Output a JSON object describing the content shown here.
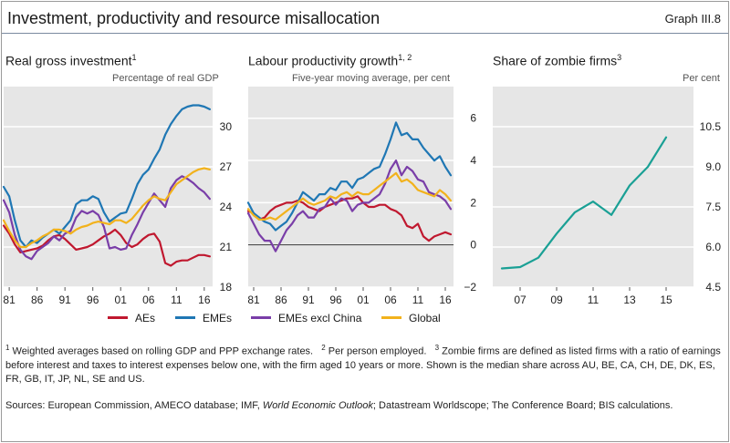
{
  "header": {
    "title": "Investment, productivity and resource misallocation",
    "graph_id": "Graph III.8"
  },
  "legend": [
    {
      "label": "AEs",
      "color": "#c0182f"
    },
    {
      "label": "EMEs",
      "color": "#1f77b4"
    },
    {
      "label": "EMEs excl China",
      "color": "#7a3ea8"
    },
    {
      "label": "Global",
      "color": "#f2b21c"
    }
  ],
  "footnotes": {
    "n1": "1",
    "t1": " Weighted averages based on rolling GDP and PPP exchange rates.",
    "n2": "2",
    "t2": " Per person employed.",
    "n3": "3",
    "t3": " Zombie firms are defined as listed firms with a ratio of earnings before interest and taxes to interest expenses below one, with the firm aged 10 years or more. Shown is the median share across AU, BE, CA, CH, DE, DK, ES, FR, GB, IT, JP, NL, SE and US."
  },
  "sources": {
    "prefix": "Sources: European Commission, AMECO database; IMF, ",
    "italic": "World Economic Outlook",
    "suffix": "; Datastream Worldscope; The Conference Board; BIS calculations."
  },
  "chart_data": [
    {
      "type": "line",
      "title": "Real gross investment",
      "title_note": "1",
      "unit_label": "Percentage of real GDP",
      "xlim": [
        1980,
        2017.5
      ],
      "ylim": [
        18,
        33
      ],
      "yticks": [
        18,
        21,
        24,
        27,
        30
      ],
      "xticks": [
        1981,
        1986,
        1991,
        1996,
        2001,
        2006,
        2011,
        2016
      ],
      "xtick_labels": [
        "81",
        "86",
        "91",
        "96",
        "01",
        "06",
        "11",
        "16"
      ],
      "grid": true,
      "series": [
        {
          "name": "AEs",
          "color": "#c0182f",
          "x": [
            1980,
            1981,
            1982,
            1983,
            1984,
            1985,
            1986,
            1987,
            1988,
            1989,
            1990,
            1991,
            1992,
            1993,
            1994,
            1995,
            1996,
            1997,
            1998,
            1999,
            2000,
            2001,
            2002,
            2003,
            2004,
            2005,
            2006,
            2007,
            2008,
            2009,
            2010,
            2011,
            2012,
            2013,
            2014,
            2015,
            2016,
            2017
          ],
          "y": [
            22.6,
            22.0,
            21.2,
            20.6,
            20.7,
            20.8,
            20.9,
            21.1,
            21.5,
            21.8,
            21.9,
            21.6,
            21.2,
            20.8,
            20.9,
            21.0,
            21.2,
            21.5,
            21.8,
            22.0,
            22.3,
            21.9,
            21.3,
            21.0,
            21.2,
            21.6,
            21.9,
            22.0,
            21.4,
            19.8,
            19.6,
            19.9,
            20.0,
            20.0,
            20.2,
            20.4,
            20.4,
            20.3
          ]
        },
        {
          "name": "EMEs",
          "color": "#1f77b4",
          "x": [
            1980,
            1981,
            1982,
            1983,
            1984,
            1985,
            1986,
            1987,
            1988,
            1989,
            1990,
            1991,
            1992,
            1993,
            1994,
            1995,
            1996,
            1997,
            1998,
            1999,
            2000,
            2001,
            2002,
            2003,
            2004,
            2005,
            2006,
            2007,
            2008,
            2009,
            2010,
            2011,
            2012,
            2013,
            2014,
            2015,
            2016,
            2017
          ],
          "y": [
            25.5,
            24.8,
            23.0,
            21.5,
            21.0,
            21.5,
            21.3,
            21.7,
            22.0,
            22.3,
            22.0,
            22.5,
            23.0,
            24.2,
            24.5,
            24.5,
            24.8,
            24.6,
            23.6,
            22.9,
            23.2,
            23.5,
            23.6,
            24.6,
            25.7,
            26.4,
            26.8,
            27.6,
            28.3,
            29.4,
            30.2,
            30.8,
            31.3,
            31.5,
            31.6,
            31.6,
            31.5,
            31.3
          ]
        },
        {
          "name": "EMEs excl China",
          "color": "#7a3ea8",
          "x": [
            1980,
            1981,
            1982,
            1983,
            1984,
            1985,
            1986,
            1987,
            1988,
            1989,
            1990,
            1991,
            1992,
            1993,
            1994,
            1995,
            1996,
            1997,
            1998,
            1999,
            2000,
            2001,
            2002,
            2003,
            2004,
            2005,
            2006,
            2007,
            2008,
            2009,
            2010,
            2011,
            2012,
            2013,
            2014,
            2015,
            2016,
            2017
          ],
          "y": [
            24.5,
            23.6,
            21.9,
            20.8,
            20.3,
            20.1,
            20.7,
            21.0,
            21.3,
            21.8,
            21.5,
            22.0,
            22.2,
            23.2,
            23.7,
            23.5,
            23.7,
            23.4,
            22.5,
            20.9,
            21.0,
            20.8,
            20.9,
            21.9,
            22.7,
            23.6,
            24.3,
            25.0,
            24.5,
            24.0,
            25.4,
            26.0,
            26.3,
            26.1,
            25.8,
            25.4,
            25.1,
            24.6
          ]
        },
        {
          "name": "Global",
          "color": "#f2b21c",
          "x": [
            1980,
            1981,
            1982,
            1983,
            1984,
            1985,
            1986,
            1987,
            1988,
            1989,
            1990,
            1991,
            1992,
            1993,
            1994,
            1995,
            1996,
            1997,
            1998,
            1999,
            2000,
            2001,
            2002,
            2003,
            2004,
            2005,
            2006,
            2007,
            2008,
            2009,
            2010,
            2011,
            2012,
            2013,
            2014,
            2015,
            2016,
            2017
          ],
          "y": [
            23.0,
            22.2,
            21.5,
            21.0,
            21.0,
            21.3,
            21.5,
            21.8,
            22.0,
            22.3,
            22.3,
            22.2,
            22.0,
            22.3,
            22.5,
            22.6,
            22.8,
            22.9,
            22.8,
            22.7,
            23.0,
            23.0,
            22.8,
            23.1,
            23.6,
            24.1,
            24.5,
            24.8,
            24.6,
            24.5,
            25.1,
            25.7,
            26.0,
            26.3,
            26.6,
            26.8,
            26.9,
            26.8
          ]
        }
      ]
    },
    {
      "type": "line",
      "title": "Labour productivity growth",
      "title_note": "1, 2",
      "unit_label": "Five-year moving average, per cent",
      "xlim": [
        1980,
        2017.5
      ],
      "ylim": [
        -2,
        7.5
      ],
      "yticks": [
        -2,
        0,
        2,
        4,
        6
      ],
      "ytick_labels": [
        "−2",
        "0",
        "2",
        "4",
        "6"
      ],
      "xticks": [
        1981,
        1986,
        1991,
        1996,
        2001,
        2006,
        2011,
        2016
      ],
      "xtick_labels": [
        "81",
        "86",
        "91",
        "96",
        "01",
        "06",
        "11",
        "16"
      ],
      "grid": true,
      "zero_line": true,
      "series": [
        {
          "name": "AEs",
          "color": "#c0182f",
          "x": [
            1980,
            1981,
            1982,
            1983,
            1984,
            1985,
            1986,
            1987,
            1988,
            1989,
            1990,
            1991,
            1992,
            1993,
            1994,
            1995,
            1996,
            1997,
            1998,
            1999,
            2000,
            2001,
            2002,
            2003,
            2004,
            2005,
            2006,
            2007,
            2008,
            2009,
            2010,
            2011,
            2012,
            2013,
            2014,
            2015,
            2016,
            2017
          ],
          "y": [
            1.6,
            1.5,
            1.2,
            1.3,
            1.6,
            1.8,
            1.9,
            2.0,
            2.0,
            2.1,
            2.0,
            1.8,
            1.7,
            1.6,
            1.8,
            1.9,
            2.0,
            2.1,
            2.2,
            2.2,
            2.3,
            2.0,
            1.8,
            1.8,
            1.9,
            1.9,
            1.7,
            1.6,
            1.4,
            0.9,
            0.8,
            1.0,
            0.4,
            0.2,
            0.4,
            0.5,
            0.6,
            0.5
          ]
        },
        {
          "name": "EMEs",
          "color": "#1f77b4",
          "x": [
            1980,
            1981,
            1982,
            1983,
            1984,
            1985,
            1986,
            1987,
            1988,
            1989,
            1990,
            1991,
            1992,
            1993,
            1994,
            1995,
            1996,
            1997,
            1998,
            1999,
            2000,
            2001,
            2002,
            2003,
            2004,
            2005,
            2006,
            2007,
            2008,
            2009,
            2010,
            2011,
            2012,
            2013,
            2014,
            2015,
            2016,
            2017
          ],
          "y": [
            2.0,
            1.5,
            1.3,
            1.1,
            1.0,
            0.7,
            0.9,
            1.1,
            1.5,
            2.0,
            2.5,
            2.3,
            2.1,
            2.4,
            2.4,
            2.7,
            2.6,
            3.0,
            3.0,
            2.7,
            3.1,
            3.2,
            3.4,
            3.6,
            3.7,
            4.3,
            5.0,
            5.8,
            5.2,
            5.3,
            5.0,
            5.0,
            4.6,
            4.3,
            4.0,
            4.2,
            3.7,
            3.3
          ]
        },
        {
          "name": "EMEs excl China",
          "color": "#7a3ea8",
          "x": [
            1980,
            1981,
            1982,
            1983,
            1984,
            1985,
            1986,
            1987,
            1988,
            1989,
            1990,
            1991,
            1992,
            1993,
            1994,
            1995,
            1996,
            1997,
            1998,
            1999,
            2000,
            2001,
            2002,
            2003,
            2004,
            2005,
            2006,
            2007,
            2008,
            2009,
            2010,
            2011,
            2012,
            2013,
            2014,
            2015,
            2016,
            2017
          ],
          "y": [
            1.5,
            1.0,
            0.5,
            0.2,
            0.2,
            -0.3,
            0.2,
            0.7,
            1.0,
            1.4,
            1.6,
            1.3,
            1.3,
            1.7,
            1.8,
            2.2,
            1.9,
            2.2,
            2.1,
            1.6,
            1.9,
            2.0,
            2.0,
            2.2,
            2.4,
            2.9,
            3.6,
            4.0,
            3.3,
            3.7,
            3.5,
            3.1,
            3.0,
            2.5,
            2.4,
            2.3,
            2.1,
            1.7
          ]
        },
        {
          "name": "Global",
          "color": "#f2b21c",
          "x": [
            1980,
            1981,
            1982,
            1983,
            1984,
            1985,
            1986,
            1987,
            1988,
            1989,
            1990,
            1991,
            1992,
            1993,
            1994,
            1995,
            1996,
            1997,
            1998,
            1999,
            2000,
            2001,
            2002,
            2003,
            2004,
            2005,
            2006,
            2007,
            2008,
            2009,
            2010,
            2011,
            2012,
            2013,
            2014,
            2015,
            2016,
            2017
          ],
          "y": [
            1.7,
            1.4,
            1.2,
            1.2,
            1.3,
            1.2,
            1.4,
            1.6,
            1.8,
            2.0,
            2.2,
            2.0,
            1.9,
            2.0,
            2.1,
            2.3,
            2.2,
            2.4,
            2.5,
            2.3,
            2.5,
            2.4,
            2.4,
            2.6,
            2.8,
            3.0,
            3.2,
            3.4,
            3.0,
            3.1,
            2.9,
            2.6,
            2.5,
            2.4,
            2.3,
            2.6,
            2.4,
            2.1
          ]
        }
      ]
    },
    {
      "type": "line",
      "title": "Share of zombie firms",
      "title_note": "3",
      "unit_label": "Per cent",
      "xlim": [
        2005.5,
        2016.5
      ],
      "ylim": [
        4.5,
        12
      ],
      "yticks": [
        4.5,
        6.0,
        7.5,
        9.0,
        10.5
      ],
      "ytick_labels": [
        "4.5",
        "6.0",
        "7.5",
        "9.0",
        "10.5"
      ],
      "xticks": [
        2007,
        2009,
        2011,
        2013,
        2015
      ],
      "xtick_labels": [
        "07",
        "09",
        "11",
        "13",
        "15"
      ],
      "grid": true,
      "series": [
        {
          "color": "#1aa095",
          "x": [
            2006,
            2007,
            2008,
            2009,
            2010,
            2011,
            2012,
            2013,
            2014,
            2015
          ],
          "y": [
            5.2,
            5.25,
            5.6,
            6.5,
            7.3,
            7.7,
            7.2,
            8.3,
            9.0,
            10.1
          ]
        }
      ]
    }
  ]
}
